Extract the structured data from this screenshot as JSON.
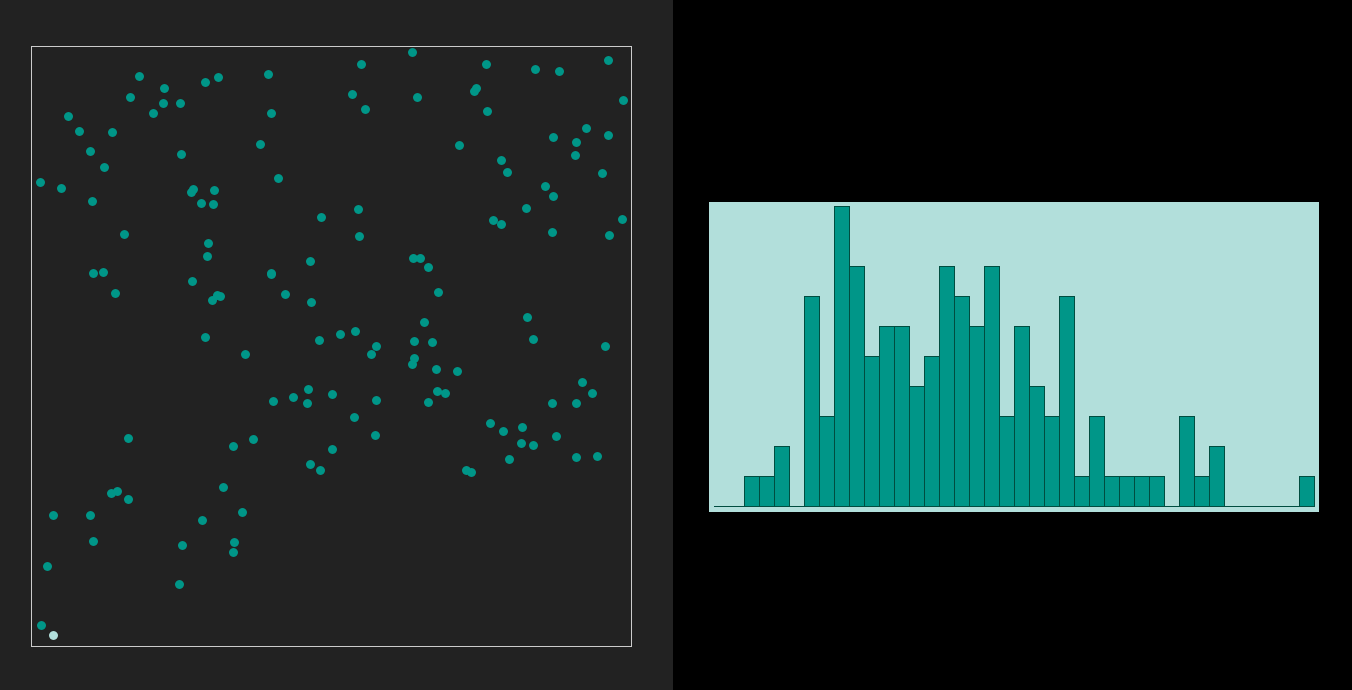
{
  "colors": {
    "left_background": "#222222",
    "right_background": "#000000",
    "particle": "#009688",
    "highlight_particle": "#b2dfdb",
    "arena_border": "#cccccc",
    "histogram_background": "#b2dfdb",
    "histogram_bar": "#009688",
    "histogram_bar_edge": "#004d40"
  },
  "chart_data": [
    {
      "type": "scatter",
      "title": "",
      "xlabel": "",
      "ylabel": "",
      "xlim": [
        0,
        600
      ],
      "ylim": [
        0,
        600
      ],
      "grid": false,
      "series": [
        {
          "x": [
            381,
            455,
            504,
            528,
            577,
            237,
            133,
            445,
            132,
            99,
            122,
            37,
            48,
            59,
            174,
            187,
            229,
            240,
            321,
            330,
            334,
            386,
            428,
            443,
            456,
            470,
            476,
            545,
            592,
            577,
            555,
            544,
            522,
            571,
            514,
            522,
            495,
            470,
            521,
            462,
            397,
            407,
            389,
            328,
            327,
            254,
            280,
            290,
            279,
            247,
            240,
            181,
            174,
            214,
            186,
            182,
            183,
            160,
            162,
            149,
            108,
            73,
            81,
            61,
            72,
            62,
            9,
            30,
            84,
            93,
            161,
            176,
            150,
            170,
            177,
            189,
            240,
            242,
            262,
            277,
            276,
            301,
            288,
            309,
            324,
            340,
            345,
            383,
            393,
            382,
            397,
            401,
            426,
            414,
            383,
            459,
            472,
            490,
            521,
            551,
            561,
            574,
            578,
            591,
            496,
            502,
            545,
            525,
            566,
            545,
            502,
            491,
            478,
            440,
            435,
            406,
            405,
            381,
            345,
            344,
            323,
            301,
            289,
            279,
            222,
            202,
            192,
            211,
            203,
            171,
            151,
            97,
            86,
            80,
            59,
            97,
            62,
            16,
            10,
            22,
            202,
            148
          ],
          "y": [
            594,
            582,
            577,
            575,
            586,
            572,
            558,
            558,
            543,
            549,
            533,
            530,
            515,
            495,
            564,
            569,
            502,
            533,
            552,
            582,
            537,
            549,
            501,
            555,
            535,
            486,
            474,
            504,
            546,
            511,
            518,
            491,
            509,
            473,
            460,
            450,
            438,
            422,
            414,
            426,
            379,
            354,
            388,
            410,
            437,
            352,
            344,
            429,
            385,
            468,
            373,
            346,
            309,
            292,
            351,
            442,
            456,
            454,
            457,
            543,
            570,
            479,
            514,
            445,
            374,
            373,
            464,
            458,
            353,
            412,
            365,
            390,
            492,
            443,
            403,
            350,
            372,
            245,
            249,
            257,
            243,
            252,
            306,
            312,
            315,
            292,
            300,
            305,
            324,
            388,
            244,
            304,
            275,
            253,
            288,
            223,
            215,
            203,
            243,
            264,
            253,
            300,
            411,
            427,
            329,
            307,
            243,
            210,
            190,
            189,
            201,
            219,
            187,
            174,
            176,
            255,
            277,
            282,
            246,
            211,
            229,
            197,
            176,
            182,
            207,
            200,
            159,
            134,
            104,
            126,
            101,
            208,
            155,
            153,
            131,
            147,
            105,
            80,
            21,
            131,
            94,
            62
          ]
        },
        {
          "name": "",
          "x": [
            22
          ],
          "y": [
            11
          ]
        }
      ]
    },
    {
      "type": "bar",
      "title": "",
      "xlabel": "",
      "ylabel": "",
      "ylim": [
        0,
        10
      ],
      "grid": false,
      "values": [
        0,
        0,
        1,
        1,
        2,
        0,
        7,
        3,
        10,
        8,
        5,
        6,
        6,
        4,
        5,
        8,
        7,
        6,
        8,
        3,
        6,
        4,
        3,
        7,
        1,
        3,
        1,
        1,
        1,
        1,
        0,
        3,
        1,
        2,
        0,
        0,
        0,
        0,
        0,
        1
      ]
    }
  ]
}
